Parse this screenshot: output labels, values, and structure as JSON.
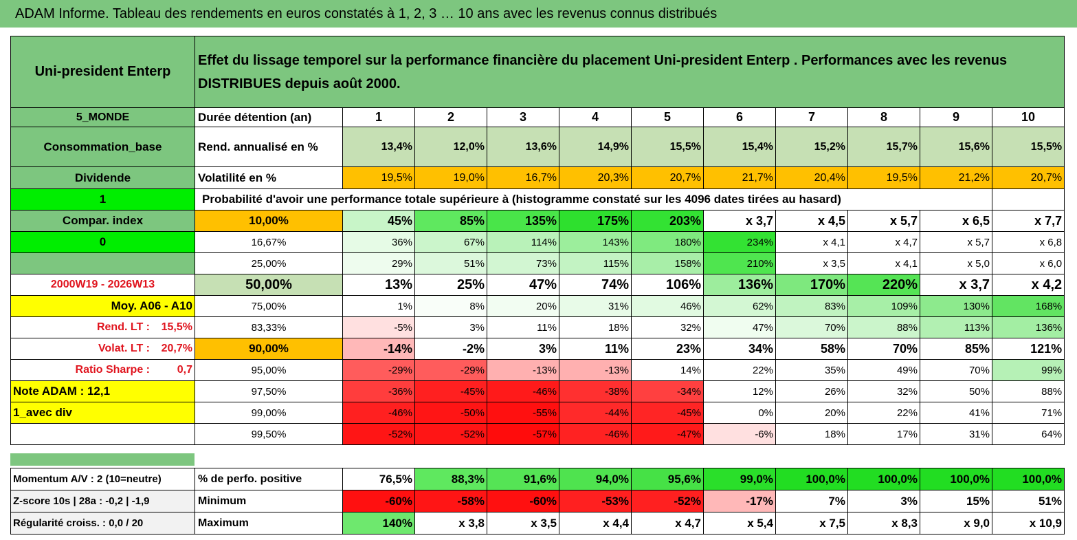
{
  "title": "ADAM Informe. Tableau des rendements en euros constatés à 1, 2, 3 … 10 ans avec les revenus connus distribués",
  "fund_name": "Uni-president Enterp",
  "header_text": "Effet du lissage temporel sur la performance financière du placement Uni-president Enterp . Performances avec les revenus DISTRIBUES depuis août 2000.",
  "side": {
    "zone": "5_MONDE",
    "sector": "Consommation_base",
    "type": "Dividende",
    "flag1": "1",
    "compar_label": "Compar. index",
    "flag0": "0",
    "period": "2000W19 - 2026W13",
    "moy": "Moy. A06 - A10",
    "rend_label": "Rend. LT :",
    "rend_value": "15,5%",
    "volat_label": "Volat. LT :",
    "volat_value": "20,7%",
    "sharpe_label": "Ratio Sharpe :",
    "sharpe_value": "0,7",
    "note": "Note ADAM : 12,1",
    "div": "1_avec div"
  },
  "years_label": "Durée détention (an)",
  "years": [
    "1",
    "2",
    "3",
    "4",
    "5",
    "6",
    "7",
    "8",
    "9",
    "10"
  ],
  "rend_row_label": "Rend. annualisé en %",
  "rend": [
    "13,4%",
    "12,0%",
    "13,6%",
    "14,9%",
    "15,5%",
    "15,4%",
    "15,2%",
    "15,7%",
    "15,6%",
    "15,5%"
  ],
  "vol_row_label": "Volatilité en %",
  "vol": [
    "19,5%",
    "19,0%",
    "16,7%",
    "20,3%",
    "20,7%",
    "21,7%",
    "20,4%",
    "19,5%",
    "21,2%",
    "20,7%"
  ],
  "prob_title": "Probabilité d'avoir une performance totale supérieure à (histogramme constaté sur les 4096 dates tirées au hasard)",
  "prob_rows": [
    {
      "p": "10,00%",
      "v": [
        "45%",
        "85%",
        "135%",
        "175%",
        "203%",
        "x 3,7",
        "x 4,5",
        "x 5,7",
        "x 6,5",
        "x 7,7"
      ]
    },
    {
      "p": "16,67%",
      "v": [
        "36%",
        "67%",
        "114%",
        "143%",
        "180%",
        "234%",
        "x 4,1",
        "x 4,7",
        "x 5,7",
        "x 6,8"
      ]
    },
    {
      "p": "25,00%",
      "v": [
        "29%",
        "51%",
        "73%",
        "115%",
        "158%",
        "210%",
        "x 3,5",
        "x 4,1",
        "x 5,0",
        "x 6,0"
      ]
    },
    {
      "p": "50,00%",
      "v": [
        "13%",
        "25%",
        "47%",
        "74%",
        "106%",
        "136%",
        "170%",
        "220%",
        "x 3,7",
        "x 4,2"
      ]
    },
    {
      "p": "75,00%",
      "v": [
        "1%",
        "8%",
        "20%",
        "31%",
        "46%",
        "62%",
        "83%",
        "109%",
        "130%",
        "168%"
      ]
    },
    {
      "p": "83,33%",
      "v": [
        "-5%",
        "3%",
        "11%",
        "18%",
        "32%",
        "47%",
        "70%",
        "88%",
        "113%",
        "136%"
      ]
    },
    {
      "p": "90,00%",
      "v": [
        "-14%",
        "-2%",
        "3%",
        "11%",
        "23%",
        "34%",
        "58%",
        "70%",
        "85%",
        "121%"
      ]
    },
    {
      "p": "95,00%",
      "v": [
        "-29%",
        "-29%",
        "-13%",
        "-13%",
        "14%",
        "22%",
        "35%",
        "49%",
        "70%",
        "99%"
      ]
    },
    {
      "p": "97,50%",
      "v": [
        "-36%",
        "-45%",
        "-46%",
        "-38%",
        "-34%",
        "12%",
        "26%",
        "32%",
        "50%",
        "88%"
      ]
    },
    {
      "p": "99,00%",
      "v": [
        "-46%",
        "-50%",
        "-55%",
        "-44%",
        "-45%",
        "0%",
        "20%",
        "22%",
        "41%",
        "71%"
      ]
    },
    {
      "p": "99,50%",
      "v": [
        "-52%",
        "-52%",
        "-57%",
        "-46%",
        "-47%",
        "-6%",
        "18%",
        "17%",
        "31%",
        "64%"
      ]
    }
  ],
  "bottom": [
    {
      "side": "Momentum A/V : 2 (10=neutre)",
      "label": "% de perfo. positive",
      "v": [
        "76,5%",
        "88,3%",
        "91,6%",
        "94,0%",
        "95,6%",
        "99,0%",
        "100,0%",
        "100,0%",
        "100,0%",
        "100,0%"
      ]
    },
    {
      "side": "Z-score 10s | 28a : -0,2 | -1,9",
      "label": "Minimum",
      "v": [
        "-60%",
        "-58%",
        "-60%",
        "-53%",
        "-52%",
        "-17%",
        "7%",
        "3%",
        "15%",
        "51%"
      ]
    },
    {
      "side": "Régularité croiss. : 0,0 / 20",
      "label": "Maximum",
      "v": [
        "140%",
        "x 3,8",
        "x 3,5",
        "x 4,4",
        "x 4,7",
        "x 5,4",
        "x 7,5",
        "x 8,3",
        "x 9,0",
        "x 10,9"
      ]
    }
  ],
  "colors": {
    "header_green": "#7dc67f",
    "bright_green": "#00ee00",
    "orange": "#ffc000",
    "yellow": "#ffff00",
    "red_text": "#e0141e",
    "return_green": "#c6e0b4"
  },
  "cell_colors": {
    "prob": [
      [
        "#c8f5c8",
        "#5fe85f",
        "#49e549",
        "#2ee02e",
        "#33e233",
        "#ffffff",
        "#ffffff",
        "#ffffff",
        "#ffffff",
        "#ffffff"
      ],
      [
        "#e6fbe6",
        "#cbf5cb",
        "#b9f2b9",
        "#9cee9c",
        "#7fea7f",
        "#33e233",
        "#ffffff",
        "#ffffff",
        "#ffffff",
        "#ffffff"
      ],
      [
        "#eefcee",
        "#dcf8dc",
        "#d2f6d2",
        "#c3f3c3",
        "#a8ee a8",
        "#4fe54f",
        "#ffffff",
        "#ffffff",
        "#ffffff",
        "#ffffff"
      ],
      [
        "#ffffff",
        "#ffffff",
        "#ffffff",
        "#ffffff",
        "#ffffff",
        "#9ded9d",
        "#7ee87e",
        "#55e455",
        "#ffffff",
        "#ffffff"
      ],
      [
        "#ffffff",
        "#f9fef9",
        "#f2fdf2",
        "#e8fbe8",
        "#e1fae1",
        "#d3f7d3",
        "#c0f3c0",
        "#a7efa7",
        "#8dea8d",
        "#62e462"
      ],
      [
        "#ffe0e0",
        "#ffffff",
        "#ffffff",
        "#ffffff",
        "#ffffff",
        "#f0fdf0",
        "#dbf8db",
        "#cbf5cb",
        "#b2f0b2",
        "#a3ee a3"
      ],
      [
        "#ffb8b8",
        "#ffffff",
        "#ffffff",
        "#ffffff",
        "#ffffff",
        "#ffffff",
        "#ffffff",
        "#ffffff",
        "#ffffff",
        "#ffffff"
      ],
      [
        "#ff5c5c",
        "#ff5c5c",
        "#ffb0b0",
        "#ffb0b0",
        "#ffffff",
        "#ffffff",
        "#ffffff",
        "#ffffff",
        "#ffffff",
        "#b6f1b6"
      ],
      [
        "#ff3d3d",
        "#ff2020",
        "#ff1a1a",
        "#ff3030",
        "#ff4040",
        "#ffffff",
        "#ffffff",
        "#ffffff",
        "#ffffff",
        "#ffffff"
      ],
      [
        "#ff2020",
        "#ff1515",
        "#ff1010",
        "#ff2a2a",
        "#ff2525",
        "#ffffff",
        "#ffffff",
        "#ffffff",
        "#ffffff",
        "#ffffff"
      ],
      [
        "#ff1515",
        "#ff1515",
        "#ff0c0c",
        "#ff2222",
        "#ff1a1a",
        "#ffe0e0",
        "#ffffff",
        "#ffffff",
        "#ffffff",
        "#ffffff"
      ]
    ],
    "bottom": [
      [
        "#ffffff",
        "#5fe85f",
        "#55e455",
        "#4fe34f",
        "#46e146",
        "#2adf2a",
        "#22dd22",
        "#22dd22",
        "#22dd22",
        "#22dd22"
      ],
      [
        "#ff1010",
        "#ff1515",
        "#ff1010",
        "#ff2020",
        "#ff2020",
        "#ffb8b8",
        "#ffffff",
        "#ffffff",
        "#ffffff",
        "#ffffff"
      ],
      [
        "#6ee86e",
        "#ffffff",
        "#ffffff",
        "#ffffff",
        "#ffffff",
        "#ffffff",
        "#ffffff",
        "#ffffff",
        "#ffffff",
        "#ffffff"
      ]
    ]
  }
}
